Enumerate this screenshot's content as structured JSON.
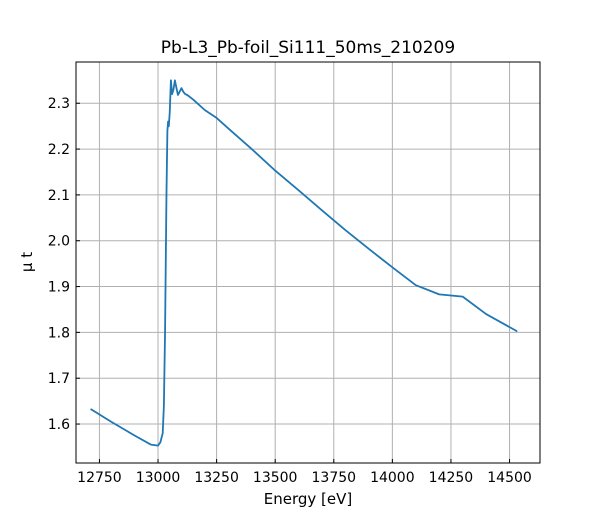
{
  "chart_data": {
    "type": "line",
    "title": "Pb-L3_Pb-foil_Si111_50ms_210209",
    "xlabel": "Energy [eV]",
    "ylabel": "μ t",
    "xlim": [
      12650,
      14630
    ],
    "ylim": [
      1.515,
      2.39
    ],
    "xticks": [
      12750,
      13000,
      13250,
      13500,
      13750,
      14000,
      14250,
      14500
    ],
    "yticks": [
      1.6,
      1.7,
      1.8,
      1.9,
      2.0,
      2.1,
      2.2,
      2.3
    ],
    "ytick_labels": [
      "1.6",
      "1.7",
      "1.8",
      "1.9",
      "2.0",
      "2.1",
      "2.2",
      "2.3"
    ],
    "grid": true,
    "series": [
      {
        "color": "#1f77b4",
        "x": [
          12715,
          12800,
          12900,
          12970,
          13000,
          13010,
          13020,
          13025,
          13030,
          13033,
          13036,
          13040,
          13043,
          13046,
          13050,
          13055,
          13060,
          13066,
          13072,
          13078,
          13085,
          13092,
          13100,
          13108,
          13116,
          13125,
          13150,
          13200,
          13250,
          13300,
          13400,
          13500,
          13600,
          13700,
          13800,
          13900,
          14000,
          14100,
          14200,
          14300,
          14400,
          14530
        ],
        "y": [
          1.632,
          1.605,
          1.575,
          1.555,
          1.553,
          1.56,
          1.58,
          1.64,
          1.8,
          1.95,
          2.1,
          2.24,
          2.26,
          2.25,
          2.28,
          2.35,
          2.32,
          2.33,
          2.35,
          2.335,
          2.318,
          2.325,
          2.333,
          2.325,
          2.32,
          2.318,
          2.308,
          2.285,
          2.268,
          2.245,
          2.2,
          2.153,
          2.11,
          2.066,
          2.023,
          1.982,
          1.942,
          1.903,
          1.883,
          1.878,
          1.84,
          1.803
        ]
      }
    ]
  }
}
